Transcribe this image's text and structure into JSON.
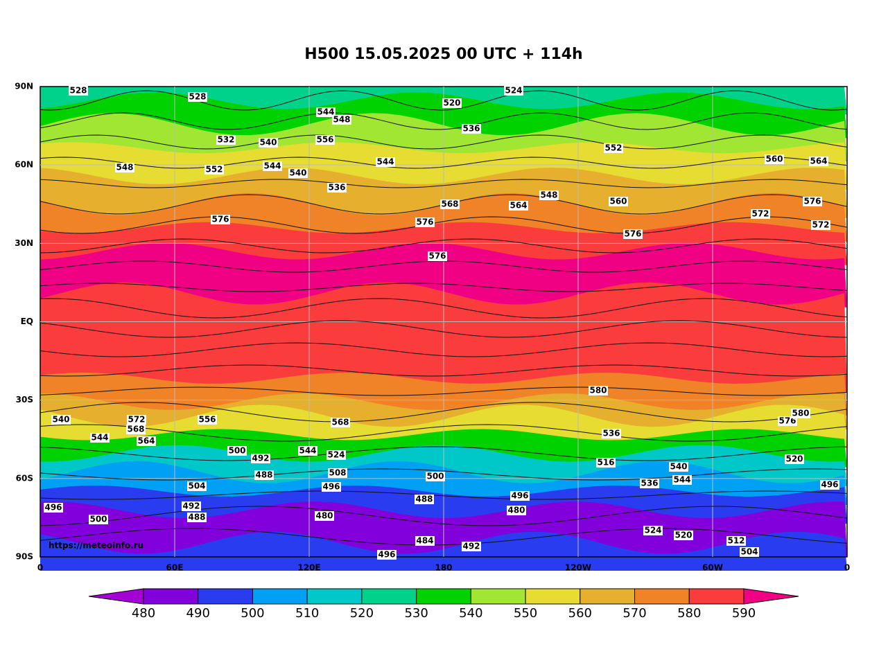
{
  "header": {
    "title": "H500  15.05.2025 00 UTC + 114h"
  },
  "map": {
    "lat_labels": [
      "90N",
      "60N",
      "30N",
      "EQ",
      "30S",
      "60S",
      "90S"
    ],
    "lon_labels": [
      "0",
      "60E",
      "120E",
      "180",
      "120W",
      "60W",
      "0"
    ],
    "credit": "https://meteoinfo.ru",
    "contour_labels": [
      "528",
      "528",
      "520",
      "524",
      "536",
      "532",
      "544",
      "548",
      "540",
      "556",
      "548",
      "544",
      "552",
      "540",
      "560",
      "564",
      "544",
      "536",
      "552",
      "568",
      "564",
      "548",
      "560",
      "572",
      "576",
      "576",
      "576",
      "576",
      "572",
      "576",
      "580",
      "576",
      "556",
      "540",
      "544",
      "572",
      "568",
      "564",
      "544",
      "524",
      "508",
      "500",
      "492",
      "488",
      "504",
      "492",
      "488",
      "480",
      "496",
      "480",
      "496",
      "500",
      "516",
      "536",
      "544",
      "520",
      "524",
      "520",
      "512",
      "504",
      "496",
      "540",
      "496",
      "500",
      "488",
      "484",
      "496",
      "492",
      "568",
      "580",
      "536"
    ]
  },
  "colorbar": {
    "ticks": [
      480,
      490,
      500,
      510,
      520,
      530,
      540,
      550,
      560,
      570,
      580,
      590
    ],
    "colors": [
      "#a400d6",
      "#8200dc",
      "#2a3cf0",
      "#00a0f5",
      "#00c8c8",
      "#00d28c",
      "#00d200",
      "#a0e632",
      "#e6dc32",
      "#e6af2d",
      "#f08228",
      "#fa3c3c",
      "#f00082"
    ]
  }
}
